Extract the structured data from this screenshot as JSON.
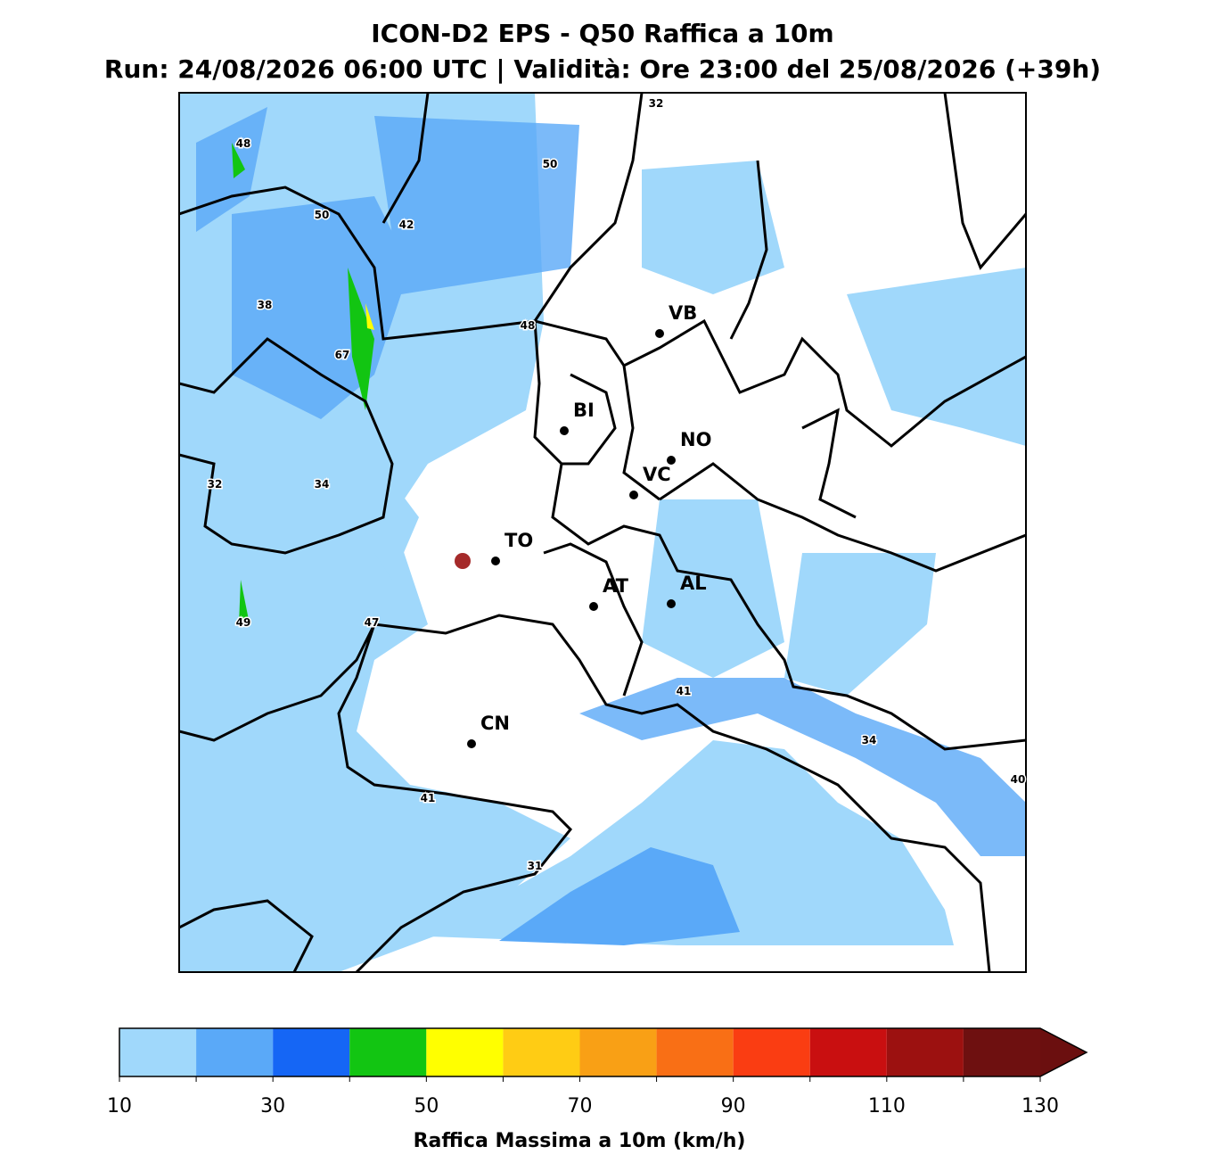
{
  "title": "ICON-D2 EPS - Q50 Raffica a 10m",
  "subtitle": "Run: 24/08/2026 06:00 UTC | Validità: Ore 23:00 del 25/08/2026 (+39h)",
  "cities": [
    "VB",
    "BI",
    "NO",
    "VC",
    "TO",
    "AT",
    "AL",
    "CN"
  ],
  "peak_labels": [
    48,
    50,
    32,
    50,
    42,
    38,
    48,
    67,
    32,
    34,
    49,
    47,
    41,
    34,
    40,
    41,
    31
  ],
  "colorbar": {
    "label": "Raffica Massima a 10m (km/h)",
    "levels": [
      10,
      20,
      30,
      40,
      50,
      60,
      70,
      80,
      90,
      100,
      110,
      120,
      130
    ],
    "colors": [
      "#a0d8fb",
      "#5aa9f8",
      "#1566f5",
      "#12c512",
      "#ffff00",
      "#ffcc14",
      "#f9a015",
      "#f96f15",
      "#fa3d12",
      "#c90f10",
      "#9c1110",
      "#6e1010"
    ],
    "over_color": "#6b0f0f",
    "ticks": [
      10,
      30,
      50,
      70,
      90,
      110,
      130
    ]
  }
}
